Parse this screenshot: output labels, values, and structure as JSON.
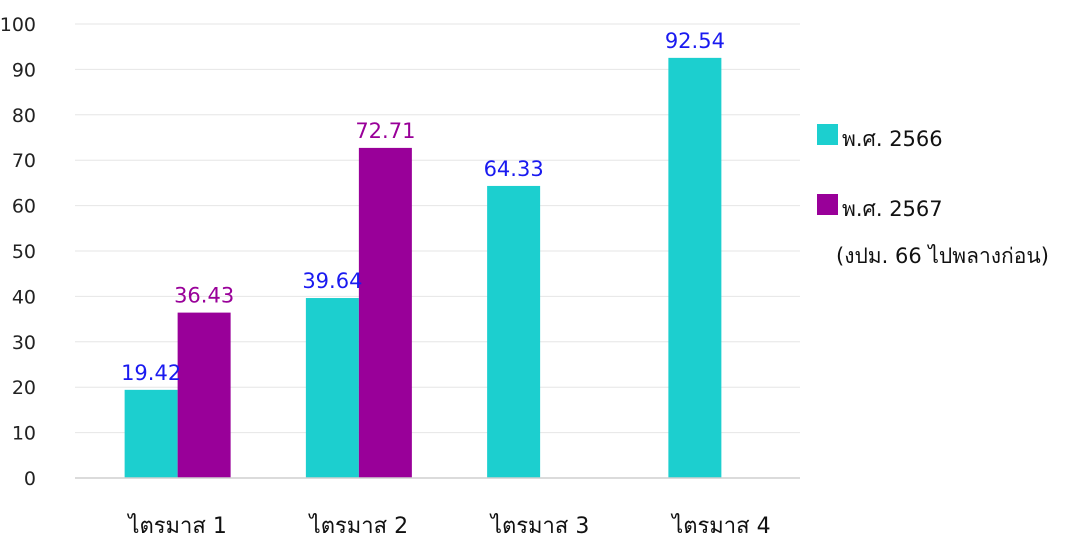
{
  "chart_data": {
    "type": "bar",
    "categories": [
      "ไตรมาส 1",
      "ไตรมาส 2",
      "ไตรมาส 3",
      "ไตรมาส 4"
    ],
    "series": [
      {
        "name": "พ.ศ. 2566",
        "values": [
          19.42,
          39.64,
          64.33,
          92.54
        ],
        "labels": [
          "19.42",
          "39.64",
          "64.33",
          "92.54"
        ],
        "color": "#1ccfcf",
        "label_color": "#1a1af0"
      },
      {
        "name": "พ.ศ. 2567",
        "values": [
          36.43,
          72.71,
          null,
          null
        ],
        "labels": [
          "36.43",
          "72.71",
          "",
          ""
        ],
        "color": "#990099",
        "label_color": "#990099"
      }
    ],
    "legend_note": "(งปม. 66 ไปพลางก่อน)",
    "y_ticks": [
      "0",
      "10",
      "20",
      "30",
      "40",
      "50",
      "60",
      "70",
      "80",
      "90",
      "100"
    ],
    "ylim": [
      0,
      100
    ],
    "grid": true,
    "legend_position": "right"
  }
}
